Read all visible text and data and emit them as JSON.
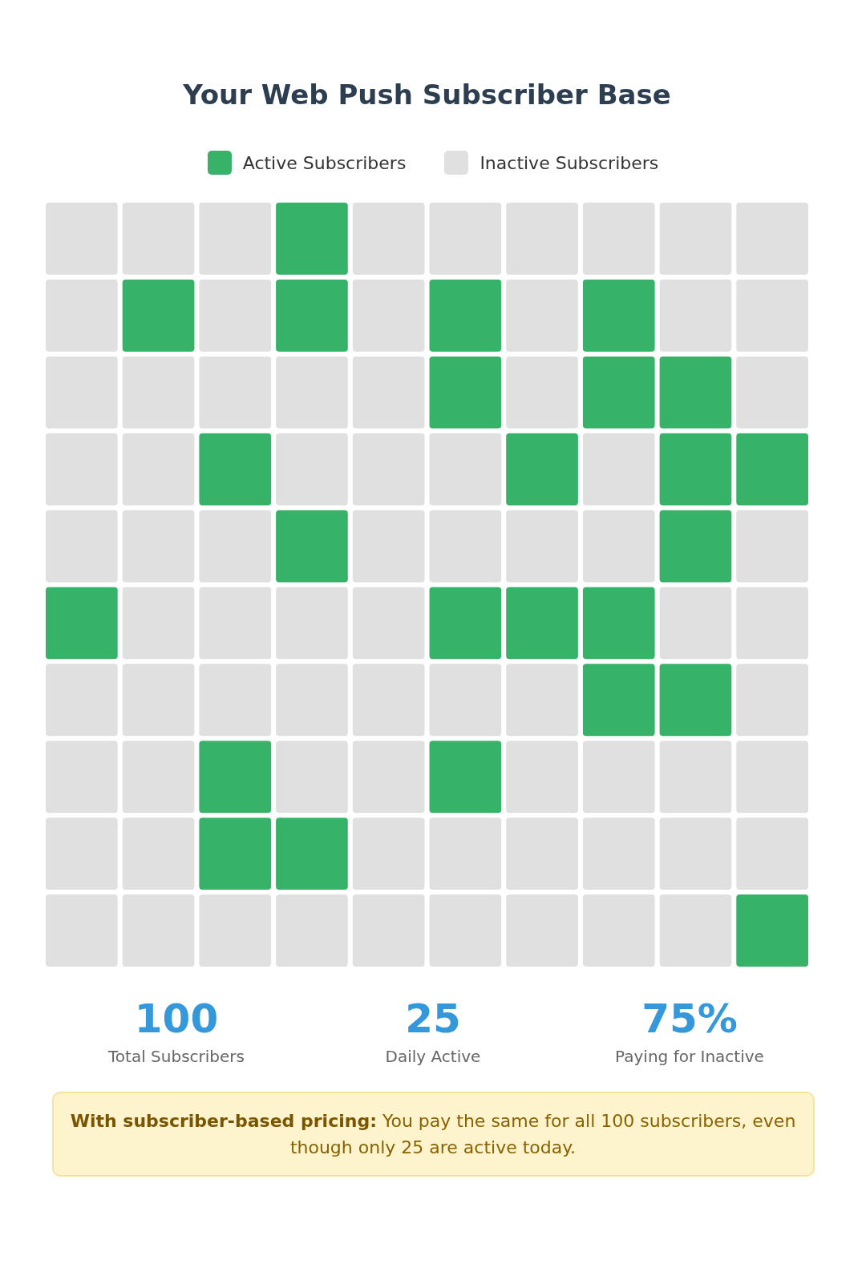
{
  "chart_data": {
    "type": "other",
    "title": "Your Web Push Subscriber Base",
    "categories": [
      "Active Subscribers",
      "Inactive Subscribers"
    ],
    "values": [
      25,
      75
    ],
    "value_labels": [
      "25",
      "75%"
    ],
    "colors": [
      "#36b368",
      "#e0e0e0"
    ],
    "annotations": [
      "100",
      "Total Subscribers",
      "Daily Active",
      "Paying for Inactive",
      "With subscriber-based pricing:",
      "You pay the same for all 100 subscribers, even though only 25 are active today."
    ]
  }
}
